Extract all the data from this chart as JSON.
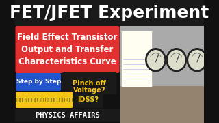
{
  "title": "FET/JFET Experiment",
  "title_color": "#ffffff",
  "title_bg": "#1a1a1a",
  "title_fontsize": 18,
  "subtitle_lines": [
    "Field Effect Transistor",
    "Output and Transfer",
    "Characteristics Curve"
  ],
  "subtitle_bg": "#e03030",
  "subtitle_color": "#ffffff",
  "subtitle_fontsize": 8.5,
  "badge1_text": "Step by Step",
  "badge1_bg": "#2255cc",
  "badge1_color": "#ffffff",
  "badge2_line1": "Pinch off",
  "badge2_line2": "Voltage?",
  "badge2_bg": "#1a1a1a",
  "badge2_color": "#f5c518",
  "badge3_text": "प्रैक्टिकल फाइल के साथ",
  "badge3_bg": "#f5c518",
  "badge3_color": "#1a1a1a",
  "badge4_text": "IDSS?",
  "badge4_bg": "#1a1a1a",
  "badge4_color": "#f5c518",
  "brand_text": "PHYSICS AFFAIRS",
  "brand_color": "#ffffff",
  "brand_bg": "#1a1a1a",
  "overall_bg": "#111111",
  "right_panel_bg": "#aaaaaa",
  "meter_colors": [
    "#222222",
    "#ddddcc"
  ],
  "paper_color": "#fffef0",
  "equip_base_color": "#8b7355"
}
